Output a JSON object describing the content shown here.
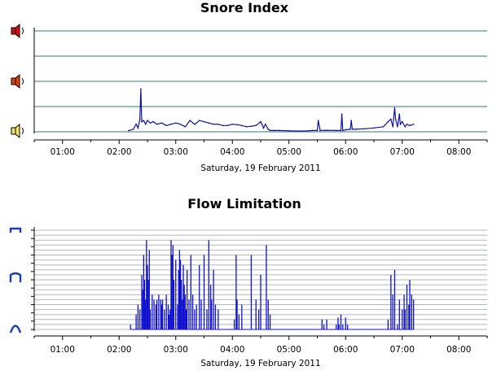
{
  "chart_data": [
    {
      "type": "line",
      "title": "Snore Index",
      "xlabel": "Saturday, 19 February 2011",
      "x_ticks": [
        "01:00",
        "02:00",
        "03:00",
        "04:00",
        "05:00",
        "06:00",
        "07:00",
        "08:00"
      ],
      "xlim": [
        "00:30",
        "08:30"
      ],
      "ylim": [
        0,
        4
      ],
      "y_icons": [
        "snore-high-icon",
        "snore-medium-icon",
        "snore-low-icon"
      ],
      "grid": true,
      "colors": {
        "line": "#1010a0",
        "grid": "#2f7a7a",
        "axis": "#000000"
      },
      "series": [
        {
          "x": [
            "02:10",
            "02:15",
            "02:18",
            "02:20",
            "02:22",
            "02:23",
            "02:24",
            "02:26",
            "02:28",
            "02:30",
            "02:33",
            "02:36",
            "02:40",
            "02:45",
            "02:50",
            "02:55",
            "03:00",
            "03:05",
            "03:10",
            "03:15",
            "03:20",
            "03:22",
            "03:25",
            "03:30",
            "03:35",
            "03:40",
            "03:45",
            "03:50",
            "03:55",
            "04:00",
            "04:05",
            "04:10",
            "04:15",
            "04:20",
            "04:25",
            "04:30",
            "04:33",
            "04:35",
            "04:38",
            "04:40",
            "04:45",
            "04:50",
            "05:00",
            "05:10",
            "05:20",
            "05:25",
            "05:30",
            "05:31",
            "05:33",
            "05:40",
            "05:50",
            "05:55",
            "05:56",
            "05:57",
            "06:00",
            "06:05",
            "06:06",
            "06:07",
            "06:10",
            "06:20",
            "06:30",
            "06:40",
            "06:45",
            "06:48",
            "06:50",
            "06:52",
            "06:53",
            "06:55",
            "06:57",
            "06:58",
            "07:00",
            "07:03",
            "07:05",
            "07:08",
            "07:12"
          ],
          "y": [
            0.05,
            0.1,
            0.3,
            0.15,
            0.5,
            1.7,
            0.4,
            0.45,
            0.3,
            0.45,
            0.35,
            0.4,
            0.3,
            0.35,
            0.25,
            0.3,
            0.35,
            0.3,
            0.2,
            0.45,
            0.3,
            0.35,
            0.45,
            0.4,
            0.35,
            0.3,
            0.3,
            0.25,
            0.25,
            0.3,
            0.28,
            0.25,
            0.2,
            0.22,
            0.25,
            0.4,
            0.15,
            0.3,
            0.1,
            0.05,
            0.05,
            0.05,
            0.04,
            0.03,
            0.04,
            0.05,
            0.05,
            0.45,
            0.05,
            0.06,
            0.05,
            0.05,
            0.7,
            0.05,
            0.08,
            0.1,
            0.45,
            0.1,
            0.1,
            0.12,
            0.15,
            0.2,
            0.4,
            0.5,
            0.2,
            0.95,
            0.5,
            0.2,
            0.7,
            0.3,
            0.4,
            0.2,
            0.3,
            0.25,
            0.3
          ]
        }
      ]
    },
    {
      "type": "bar",
      "title": "Flow Limitation",
      "xlabel": "Saturday, 19 February 2011",
      "x_ticks": [
        "01:00",
        "02:00",
        "03:00",
        "04:00",
        "05:00",
        "06:00",
        "07:00",
        "08:00"
      ],
      "xlim": [
        "00:30",
        "08:30"
      ],
      "ylim": [
        0,
        1
      ],
      "y_icons": [
        "flow-flat-icon",
        "flow-partial-icon",
        "flow-normal-icon"
      ],
      "grid": true,
      "colors": {
        "line": "#1010d0",
        "grid": "#b0b8c0",
        "axis": "#000000"
      },
      "series": [
        {
          "x": [
            "02:12",
            "02:18",
            "02:20",
            "02:22",
            "02:24",
            "02:25",
            "02:26",
            "02:27",
            "02:28",
            "02:29",
            "02:30",
            "02:31",
            "02:32",
            "02:33",
            "02:35",
            "02:37",
            "02:39",
            "02:40",
            "02:42",
            "02:44",
            "02:45",
            "02:46",
            "02:48",
            "02:50",
            "02:52",
            "02:53",
            "02:54",
            "02:55",
            "02:56",
            "02:57",
            "02:58",
            "03:00",
            "03:02",
            "03:03",
            "03:04",
            "03:05",
            "03:06",
            "03:07",
            "03:08",
            "03:09",
            "03:10",
            "03:11",
            "03:12",
            "03:14",
            "03:16",
            "03:18",
            "03:20",
            "03:22",
            "03:25",
            "03:27",
            "03:30",
            "03:33",
            "03:35",
            "03:37",
            "03:38",
            "03:40",
            "03:42",
            "03:45",
            "04:02",
            "04:04",
            "04:05",
            "04:07",
            "04:10",
            "04:20",
            "04:25",
            "04:28",
            "04:30",
            "04:36",
            "04:38",
            "04:40",
            "05:35",
            "05:37",
            "05:40",
            "05:50",
            "05:52",
            "05:53",
            "05:55",
            "05:57",
            "06:00",
            "06:02",
            "06:45",
            "06:48",
            "06:50",
            "06:52",
            "06:55",
            "06:57",
            "07:00",
            "07:02",
            "07:03",
            "07:05",
            "07:07",
            "07:08",
            "07:10",
            "07:12"
          ],
          "y": [
            0.05,
            0.15,
            0.25,
            0.2,
            0.55,
            0.4,
            0.75,
            0.5,
            0.3,
            0.9,
            0.65,
            0.5,
            0.8,
            0.2,
            0.35,
            0.3,
            0.25,
            0.3,
            0.35,
            0.3,
            0.25,
            0.3,
            0.2,
            0.35,
            0.25,
            0.15,
            0.2,
            0.9,
            0.75,
            0.85,
            0.5,
            0.7,
            0.25,
            0.6,
            0.8,
            0.7,
            0.5,
            0.3,
            0.65,
            0.45,
            0.35,
            0.2,
            0.6,
            0.3,
            0.75,
            0.35,
            0.2,
            0.25,
            0.65,
            0.3,
            0.75,
            0.2,
            0.9,
            0.45,
            0.3,
            0.6,
            0.25,
            0.2,
            0.1,
            0.75,
            0.3,
            0.15,
            0.25,
            0.75,
            0.3,
            0.2,
            0.55,
            0.85,
            0.3,
            0.15,
            0.1,
            0.05,
            0.1,
            0.05,
            0.12,
            0.05,
            0.15,
            0.05,
            0.12,
            0.05,
            0.1,
            0.55,
            0.35,
            0.6,
            0.05,
            0.3,
            0.2,
            0.35,
            0.2,
            0.45,
            0.25,
            0.5,
            0.35,
            0.3
          ]
        }
      ]
    }
  ]
}
